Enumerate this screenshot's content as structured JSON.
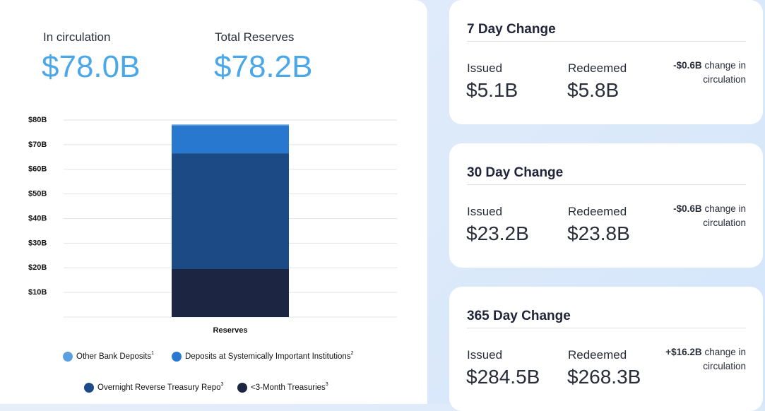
{
  "summary": {
    "circulation_label": "In circulation",
    "circulation_value": "$78.0B",
    "reserves_label": "Total Reserves",
    "reserves_value": "$78.2B"
  },
  "chart_data": {
    "type": "stacked_bar",
    "categories": [
      "Reserves"
    ],
    "series": [
      {
        "name": "<3-Month Treasuries",
        "footnote": "3",
        "color": "#1c2541",
        "values": [
          19.5
        ]
      },
      {
        "name": "Overnight Reverse Treasury Repo",
        "footnote": "3",
        "color": "#1c4a85",
        "values": [
          47
        ]
      },
      {
        "name": "Deposits at Systemically Important Institutions",
        "footnote": "2",
        "color": "#2878d0",
        "values": [
          11.2
        ]
      },
      {
        "name": "Other Bank Deposits",
        "footnote": "1",
        "color": "#5c9fe0",
        "values": [
          0.5
        ]
      }
    ],
    "ylim": [
      0,
      80
    ],
    "yticks": [
      {
        "value": 10,
        "label": "$10B"
      },
      {
        "value": 20,
        "label": "$20B"
      },
      {
        "value": 30,
        "label": "$30B"
      },
      {
        "value": 40,
        "label": "$40B"
      },
      {
        "value": 50,
        "label": "$50B"
      },
      {
        "value": 60,
        "label": "$60B"
      },
      {
        "value": 70,
        "label": "$70B"
      },
      {
        "value": 80,
        "label": "$80B"
      }
    ],
    "grid": true
  },
  "cards": [
    {
      "title": "7 Day Change",
      "issued_label": "Issued",
      "issued": "$5.1B",
      "redeemed_label": "Redeemed",
      "redeemed": "$5.8B",
      "change": "-$0.6B",
      "change_text": "change in circulation"
    },
    {
      "title": "30 Day Change",
      "issued_label": "Issued",
      "issued": "$23.2B",
      "redeemed_label": "Redeemed",
      "redeemed": "$23.8B",
      "change": "-$0.6B",
      "change_text": "change in circulation"
    },
    {
      "title": "365 Day Change",
      "issued_label": "Issued",
      "issued": "$284.5B",
      "redeemed_label": "Redeemed",
      "redeemed": "$268.3B",
      "change": "+$16.2B",
      "change_text": "change in circulation"
    }
  ]
}
